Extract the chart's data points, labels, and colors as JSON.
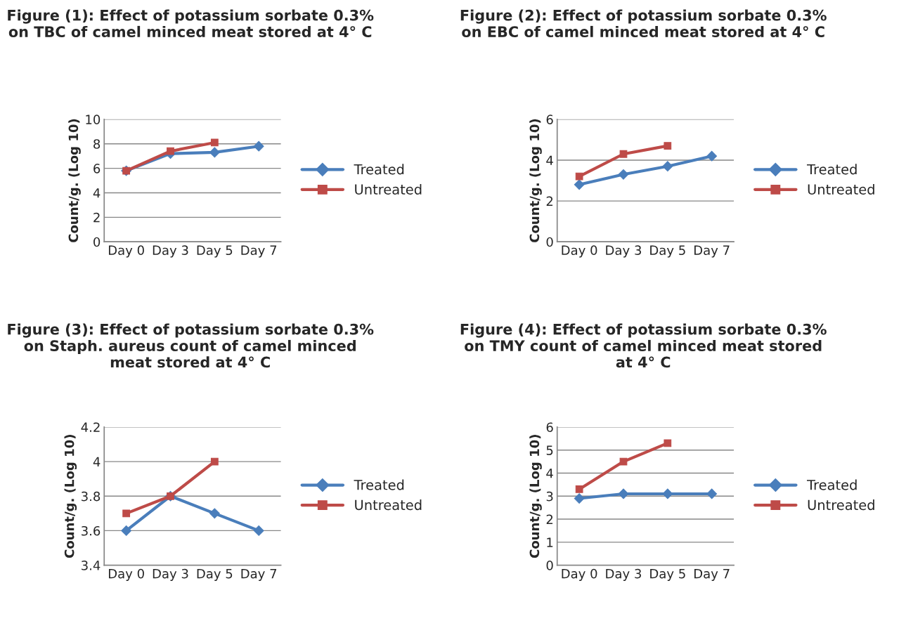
{
  "chart_data": [
    {
      "type": "line",
      "title": "Figure (1): Effect of potassium sorbate 0.3% on TBC of camel minced meat stored at 4° C",
      "ylabel": "Count/g. (Log 10)",
      "categories": [
        "Day 0",
        "Day 3",
        "Day 5",
        "Day 7"
      ],
      "ylim": [
        0,
        10
      ],
      "yticks": [
        0,
        2,
        4,
        6,
        8,
        10
      ],
      "grid": "y",
      "legend": "right",
      "series": [
        {
          "name": "Treated",
          "color": "#4a7ebb",
          "marker": "diamond",
          "values": [
            5.8,
            7.2,
            7.3,
            7.8
          ]
        },
        {
          "name": "Untreated",
          "color": "#be4b48",
          "marker": "square",
          "values": [
            5.8,
            7.4,
            8.1,
            null
          ]
        }
      ]
    },
    {
      "type": "line",
      "title": "Figure (2): Effect of potassium sorbate 0.3% on EBC of camel minced meat stored at 4° C",
      "ylabel": "Count/g. (Log 10)",
      "categories": [
        "Day 0",
        "Day 3",
        "Day 5",
        "Day 7"
      ],
      "ylim": [
        0,
        6
      ],
      "yticks": [
        0,
        2,
        4,
        6
      ],
      "grid": "y",
      "legend": "right",
      "series": [
        {
          "name": "Treated",
          "color": "#4a7ebb",
          "marker": "diamond",
          "values": [
            2.8,
            3.3,
            3.7,
            4.2
          ]
        },
        {
          "name": "Untreated",
          "color": "#be4b48",
          "marker": "square",
          "values": [
            3.2,
            4.3,
            4.7,
            null
          ]
        }
      ]
    },
    {
      "type": "line",
      "title": "Figure (3): Effect of potassium sorbate 0.3% on Staph. aureus count of camel minced meat stored at 4° C",
      "ylabel": "Count/g. (Log 10)",
      "categories": [
        "Day 0",
        "Day 3",
        "Day 5",
        "Day 7"
      ],
      "ylim": [
        3.4,
        4.2
      ],
      "yticks": [
        3.4,
        3.6,
        3.8,
        4,
        4.2
      ],
      "grid": "y",
      "legend": "right",
      "series": [
        {
          "name": "Treated",
          "color": "#4a7ebb",
          "marker": "diamond",
          "values": [
            3.6,
            3.8,
            3.7,
            3.6
          ]
        },
        {
          "name": "Untreated",
          "color": "#be4b48",
          "marker": "square",
          "values": [
            3.7,
            3.8,
            4.0,
            null
          ]
        }
      ]
    },
    {
      "type": "line",
      "title": "Figure (4): Effect of potassium sorbate 0.3% on TMY count of camel minced meat stored at 4° C",
      "ylabel": "Count/g. (Log 10)",
      "categories": [
        "Day 0",
        "Day 3",
        "Day 5",
        "Day 7"
      ],
      "ylim": [
        0,
        6
      ],
      "yticks": [
        0,
        1,
        2,
        3,
        4,
        5,
        6
      ],
      "grid": "y",
      "legend": "right",
      "series": [
        {
          "name": "Treated",
          "color": "#4a7ebb",
          "marker": "diamond",
          "values": [
            2.9,
            3.1,
            3.1,
            3.1
          ]
        },
        {
          "name": "Untreated",
          "color": "#be4b48",
          "marker": "square",
          "values": [
            3.3,
            4.5,
            5.3,
            null
          ]
        }
      ]
    }
  ]
}
